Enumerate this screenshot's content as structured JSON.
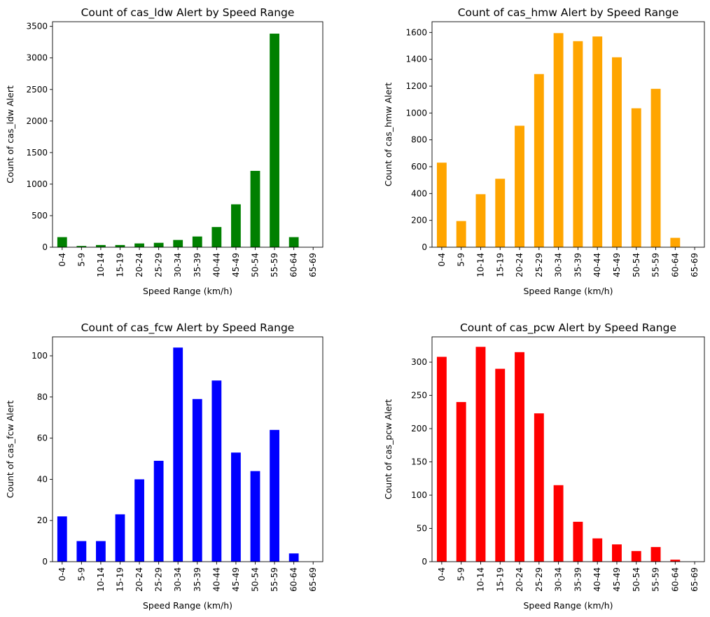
{
  "chart_data": [
    {
      "type": "bar",
      "title": "Count of cas_ldw Alert by Speed Range",
      "xlabel": "Speed Range (km/h)",
      "ylabel": "Count of cas_ldw Alert",
      "categories": [
        "0-4",
        "5-9",
        "10-14",
        "15-19",
        "20-24",
        "25-29",
        "30-34",
        "35-39",
        "40-44",
        "45-49",
        "50-54",
        "55-59",
        "60-64",
        "65-69"
      ],
      "values": [
        160,
        20,
        35,
        35,
        60,
        70,
        115,
        170,
        320,
        680,
        1210,
        3385,
        160,
        0
      ],
      "ylim": [
        0,
        3574
      ],
      "yticks": [
        0,
        500,
        1000,
        1500,
        2000,
        2500,
        3000,
        3500
      ],
      "color": "#008000",
      "grid": false
    },
    {
      "type": "bar",
      "title": "Count of cas_hmw Alert by Speed Range",
      "xlabel": "Speed Range (km/h)",
      "ylabel": "Count of cas_hmw Alert",
      "categories": [
        "0-4",
        "5-9",
        "10-14",
        "15-19",
        "20-24",
        "25-29",
        "30-34",
        "35-39",
        "40-44",
        "45-49",
        "50-54",
        "55-59",
        "60-64",
        "65-69"
      ],
      "values": [
        630,
        195,
        395,
        510,
        905,
        1290,
        1595,
        1535,
        1570,
        1415,
        1035,
        1180,
        70,
        0
      ],
      "ylim": [
        0,
        1680
      ],
      "yticks": [
        0,
        200,
        400,
        600,
        800,
        1000,
        1200,
        1400,
        1600
      ],
      "color": "#FFA500",
      "grid": false
    },
    {
      "type": "bar",
      "title": "Count of cas_fcw Alert by Speed Range",
      "xlabel": "Speed Range (km/h)",
      "ylabel": "Count of cas_fcw Alert",
      "categories": [
        "0-4",
        "5-9",
        "10-14",
        "15-19",
        "20-24",
        "25-29",
        "30-34",
        "35-39",
        "40-44",
        "45-49",
        "50-54",
        "55-59",
        "60-64",
        "65-69"
      ],
      "values": [
        22,
        10,
        10,
        23,
        40,
        49,
        104,
        79,
        88,
        53,
        44,
        64,
        4,
        0
      ],
      "ylim": [
        0,
        109.2
      ],
      "yticks": [
        0,
        20,
        40,
        60,
        80,
        100
      ],
      "color": "#0000FF",
      "grid": false
    },
    {
      "type": "bar",
      "title": "Count of cas_pcw Alert by Speed Range",
      "xlabel": "Speed Range (km/h)",
      "ylabel": "Count of cas_pcw Alert",
      "categories": [
        "0-4",
        "5-9",
        "10-14",
        "15-19",
        "20-24",
        "25-29",
        "30-34",
        "35-39",
        "40-44",
        "45-49",
        "50-54",
        "55-59",
        "60-64",
        "65-69"
      ],
      "values": [
        308,
        240,
        323,
        290,
        315,
        223,
        115,
        60,
        35,
        26,
        16,
        22,
        3,
        0
      ],
      "ylim": [
        0,
        338
      ],
      "yticks": [
        0,
        50,
        100,
        150,
        200,
        250,
        300
      ],
      "color": "#FF0000",
      "grid": false
    }
  ]
}
